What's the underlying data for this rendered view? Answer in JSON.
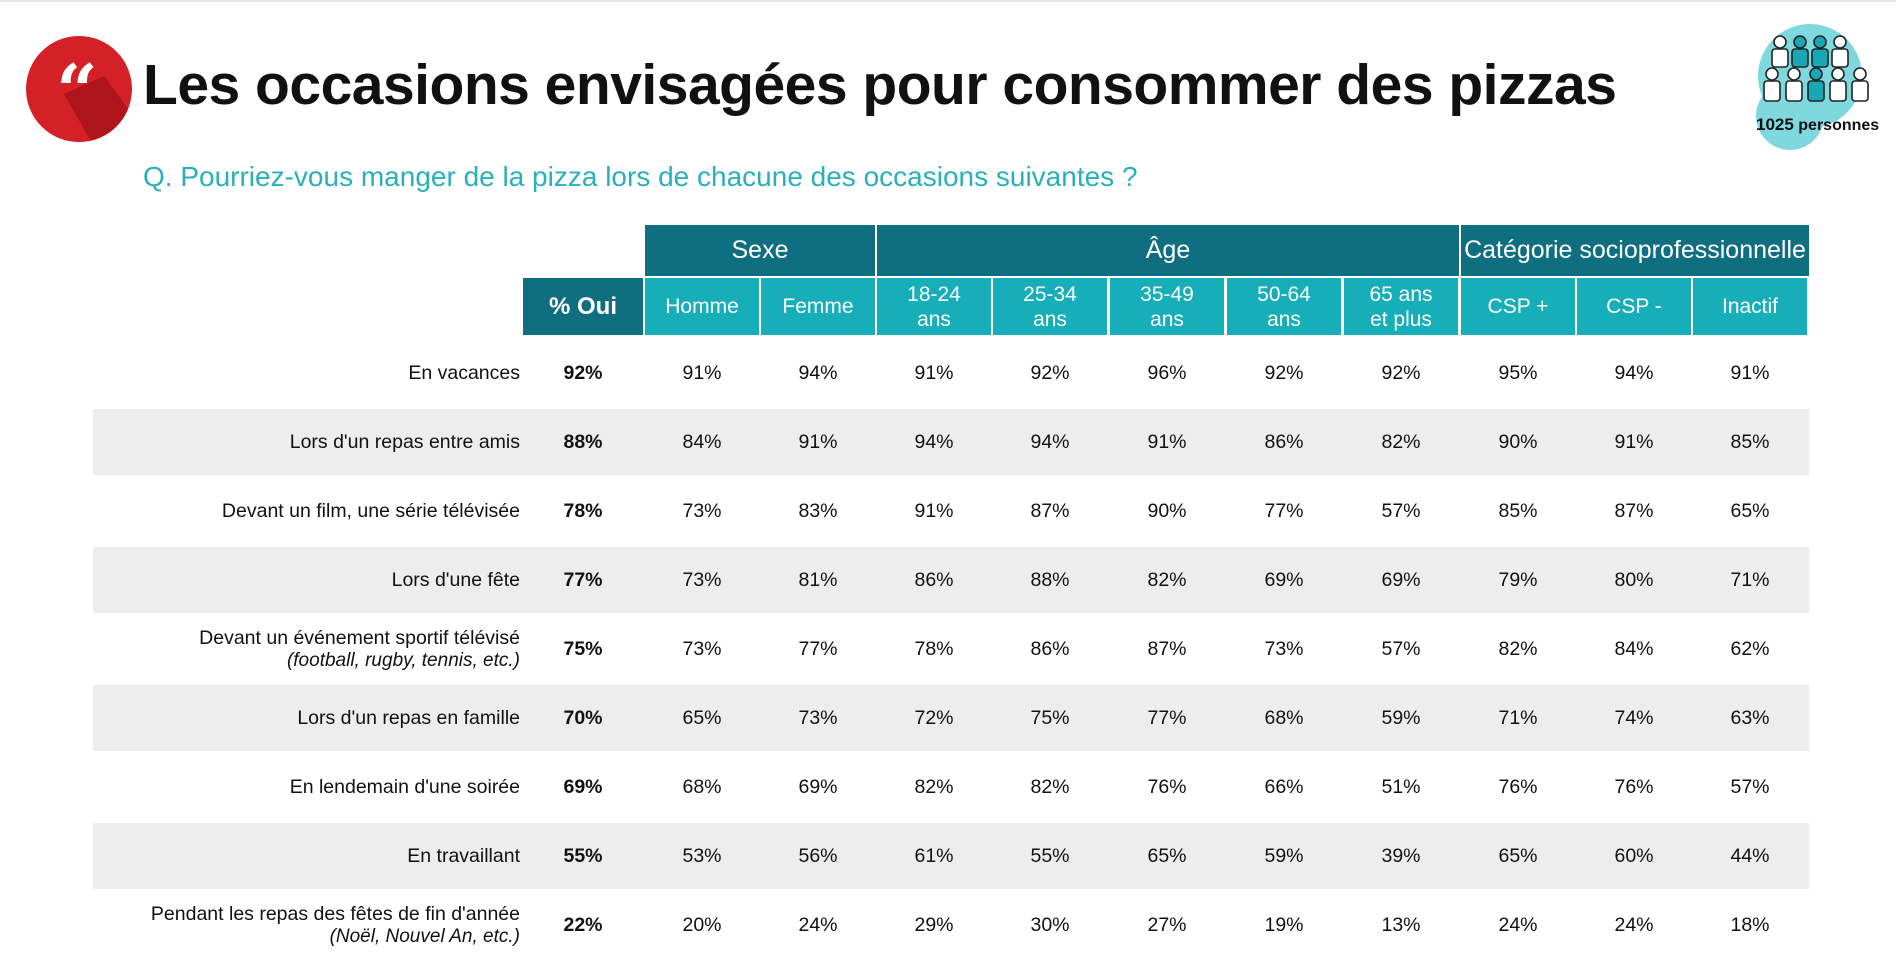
{
  "title": "Les occasions envisagées pour consommer des pizzas",
  "question": "Q. Pourriez-vous manger de la pizza lors de chacune des occasions suivantes ?",
  "sample": {
    "count": "1025",
    "unit": "personnes"
  },
  "colors": {
    "dark_teal": "#0f6e80",
    "light_teal": "#16aeb9",
    "logo_red": "#d42027",
    "question_text": "#2ab0b8",
    "shade": "#ededed"
  },
  "icons": {
    "logo": "quote-mark-icon",
    "sample": "people-group-icon"
  },
  "table": {
    "groups": [
      {
        "label": "Sexe"
      },
      {
        "label": "Âge"
      },
      {
        "label": "Catégorie socioprofessionnelle"
      }
    ],
    "total_header": "% Oui",
    "columns": [
      {
        "line1": "Homme",
        "line2": ""
      },
      {
        "line1": "Femme",
        "line2": ""
      },
      {
        "line1": "18-24",
        "line2": "ans"
      },
      {
        "line1": "25-34",
        "line2": "ans"
      },
      {
        "line1": "35-49",
        "line2": "ans"
      },
      {
        "line1": "50-64",
        "line2": "ans"
      },
      {
        "line1": "65 ans",
        "line2": "et plus"
      },
      {
        "line1": "CSP +",
        "line2": ""
      },
      {
        "line1": "CSP -",
        "line2": ""
      },
      {
        "line1": "Inactif",
        "line2": ""
      }
    ],
    "rows": [
      {
        "label": "En vacances",
        "note": "",
        "total": "92%",
        "values": [
          "91%",
          "94%",
          "91%",
          "92%",
          "96%",
          "92%",
          "92%",
          "95%",
          "94%",
          "91%"
        ]
      },
      {
        "label": "Lors d'un repas entre amis",
        "note": "",
        "total": "88%",
        "values": [
          "84%",
          "91%",
          "94%",
          "94%",
          "91%",
          "86%",
          "82%",
          "90%",
          "91%",
          "85%"
        ]
      },
      {
        "label": "Devant un film, une série télévisée",
        "note": "",
        "total": "78%",
        "values": [
          "73%",
          "83%",
          "91%",
          "87%",
          "90%",
          "77%",
          "57%",
          "85%",
          "87%",
          "65%"
        ]
      },
      {
        "label": "Lors d'une fête",
        "note": "",
        "total": "77%",
        "values": [
          "73%",
          "81%",
          "86%",
          "88%",
          "82%",
          "69%",
          "69%",
          "79%",
          "80%",
          "71%"
        ]
      },
      {
        "label": "Devant un événement sportif télévisé",
        "note": "(football, rugby, tennis, etc.)",
        "total": "75%",
        "values": [
          "73%",
          "77%",
          "78%",
          "86%",
          "87%",
          "73%",
          "57%",
          "82%",
          "84%",
          "62%"
        ]
      },
      {
        "label": "Lors d'un repas en famille",
        "note": "",
        "total": "70%",
        "values": [
          "65%",
          "73%",
          "72%",
          "75%",
          "77%",
          "68%",
          "59%",
          "71%",
          "74%",
          "63%"
        ]
      },
      {
        "label": "En lendemain d'une soirée",
        "note": "",
        "total": "69%",
        "values": [
          "68%",
          "69%",
          "82%",
          "82%",
          "76%",
          "66%",
          "51%",
          "76%",
          "76%",
          "57%"
        ]
      },
      {
        "label": "En travaillant",
        "note": "",
        "total": "55%",
        "values": [
          "53%",
          "56%",
          "61%",
          "55%",
          "65%",
          "59%",
          "39%",
          "65%",
          "60%",
          "44%"
        ]
      },
      {
        "label": "Pendant les repas des fêtes de fin d'année",
        "note": "(Noël, Nouvel An, etc.)",
        "total": "22%",
        "values": [
          "20%",
          "24%",
          "29%",
          "30%",
          "27%",
          "19%",
          "13%",
          "24%",
          "24%",
          "18%"
        ]
      }
    ]
  }
}
